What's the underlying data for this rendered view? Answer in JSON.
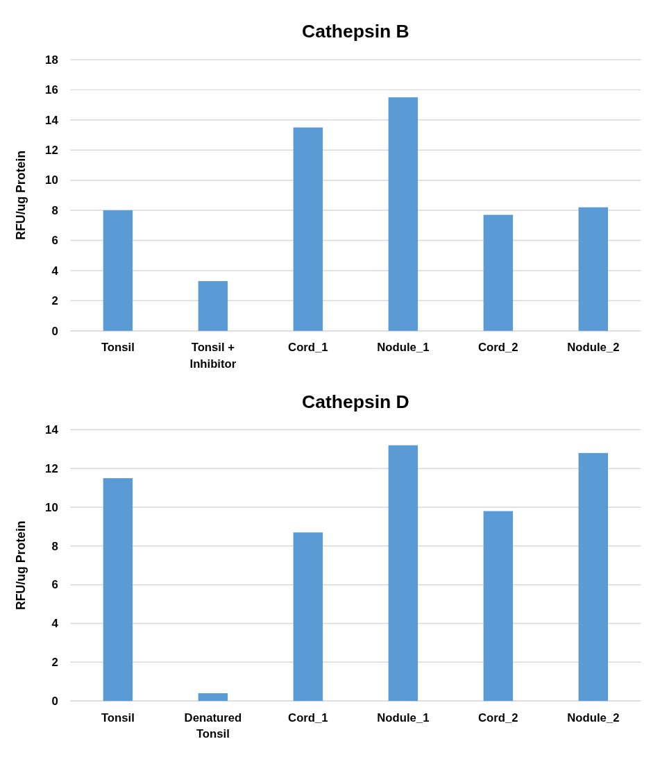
{
  "chart_data": [
    {
      "type": "bar",
      "title": "Cathepsin B",
      "ylabel": "RFU/ug Protein",
      "categories": [
        "Tonsil",
        "Tonsil + Inhibitor",
        "Cord_1",
        "Nodule_1",
        "Cord_2",
        "Nodule_2"
      ],
      "values": [
        8.0,
        3.3,
        13.5,
        15.5,
        7.7,
        8.2
      ],
      "color": "#5b9bd5",
      "ylim": [
        0,
        18
      ],
      "yticks": [
        0,
        2,
        4,
        6,
        8,
        10,
        12,
        14,
        16,
        18
      ],
      "grid": "y"
    },
    {
      "type": "bar",
      "title": "Cathepsin D",
      "ylabel": "RFU/ug Protein",
      "categories": [
        "Tonsil",
        "Denatured Tonsil",
        "Cord_1",
        "Nodule_1",
        "Cord_2",
        "Nodule_2"
      ],
      "values": [
        11.5,
        0.4,
        8.7,
        13.2,
        9.8,
        12.8
      ],
      "color": "#5b9bd5",
      "ylim": [
        0,
        14
      ],
      "yticks": [
        0,
        2,
        4,
        6,
        8,
        10,
        12,
        14
      ],
      "grid": "y"
    }
  ]
}
